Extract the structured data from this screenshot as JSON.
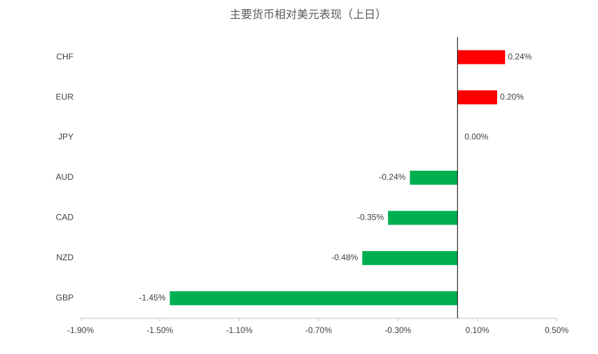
{
  "chart_data": {
    "type": "hbar",
    "title": "主要货币相对美元表现（上日）",
    "categories": [
      "CHF",
      "EUR",
      "JPY",
      "AUD",
      "CAD",
      "NZD",
      "GBP"
    ],
    "values": [
      0.24,
      0.2,
      0.0,
      -0.24,
      -0.35,
      -0.48,
      -1.45
    ],
    "value_labels": [
      "0.24%",
      "0.20%",
      "0.00%",
      "-0.24%",
      "-0.35%",
      "-0.48%",
      "-1.45%"
    ],
    "positive_color": "#ff0000",
    "negative_color": "#00b050",
    "xlim": [
      -1.9,
      0.5
    ],
    "xticks": [
      {
        "value": -1.9,
        "label": "-1.90%"
      },
      {
        "value": -1.5,
        "label": "-1.50%"
      },
      {
        "value": -1.1,
        "label": "-1.10%"
      },
      {
        "value": -0.7,
        "label": "-0.70%"
      },
      {
        "value": -0.3,
        "label": "-0.30%"
      },
      {
        "value": 0.1,
        "label": "0.10%"
      },
      {
        "value": 0.5,
        "label": "0.50%"
      }
    ],
    "grid": false
  }
}
